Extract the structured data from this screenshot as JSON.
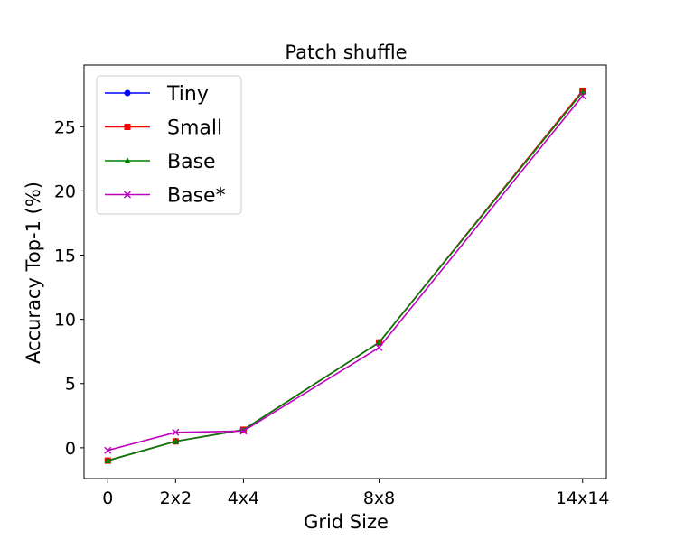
{
  "chart_data": {
    "type": "line",
    "title": "Patch shuffle",
    "xlabel": "Grid Size",
    "ylabel": "Accuracy Top-1 (%)",
    "x_ticks": [
      {
        "label": "0",
        "pos": 0
      },
      {
        "label": "2x2",
        "pos": 2
      },
      {
        "label": "4x4",
        "pos": 4
      },
      {
        "label": "8x8",
        "pos": 8
      },
      {
        "label": "14x14",
        "pos": 14
      }
    ],
    "xlim": [
      -0.7,
      14.7
    ],
    "ylim": [
      -2.4,
      29.8
    ],
    "y_ticks": [
      0,
      5,
      10,
      15,
      20,
      25
    ],
    "grid": false,
    "legend_position": "top-left",
    "series": [
      {
        "name": "Tiny",
        "color": "#0000ff",
        "marker": "circle",
        "values": [
          -1.0,
          0.5,
          1.4,
          8.2,
          27.8
        ]
      },
      {
        "name": "Small",
        "color": "#ff0000",
        "marker": "square",
        "values": [
          -1.0,
          0.5,
          1.4,
          8.2,
          27.8
        ]
      },
      {
        "name": "Base",
        "color": "#008000",
        "marker": "triangle",
        "values": [
          -1.0,
          0.5,
          1.4,
          8.2,
          27.7
        ]
      },
      {
        "name": "Base*",
        "color": "#bf00bf",
        "marker": "x",
        "values": [
          -0.2,
          1.2,
          1.3,
          7.8,
          27.4
        ]
      }
    ]
  }
}
